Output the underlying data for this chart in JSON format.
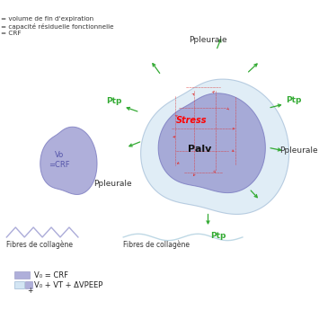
{
  "bg_color": "#ffffff",
  "purple_fill": "#9090cc",
  "purple_fill_alpha": 0.72,
  "light_blue_fill": "#c8dff0",
  "light_blue_fill_alpha": 0.55,
  "dashed_red": "#dd3333",
  "green_arrow": "#33aa33",
  "text_color": "#333333",
  "top_left_lines": [
    "= volume de fin d'expiration",
    "= capacité résiduelle fonctionnelle",
    "= CRF"
  ],
  "label_Vo_CRF": "Vo\n=CRF",
  "label_Ppleurale_top": "Ppleurale",
  "label_Ppleurale_left": "Ppleurale",
  "label_Ppleurale_right": "Ppleurale",
  "label_Ptp_left": "Ptp",
  "label_Ptp_right_top": "Ptp",
  "label_Ptp_bottom": "Ptp",
  "label_Stress": "Stress",
  "label_Palv": "Palv",
  "fibres_label": "Fibres de collagène",
  "legend_label1": "V₀ = CRF",
  "legend_label2": "V₀ + VT + ΔVPEEP"
}
